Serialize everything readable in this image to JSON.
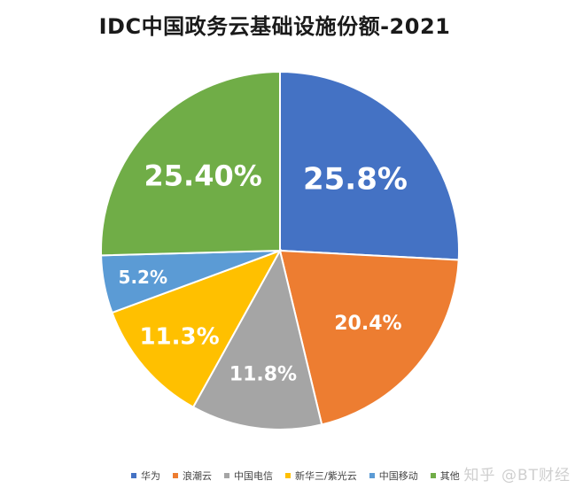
{
  "chart_data": {
    "type": "pie",
    "title": "IDC中国政务云基础设施份额-2021",
    "slices": [
      {
        "name": "华为",
        "value": 25.8,
        "label": "25.8%",
        "color": "#4472C4"
      },
      {
        "name": "浪潮云",
        "value": 20.4,
        "label": "20.4%",
        "color": "#ED7D31"
      },
      {
        "name": "中国电信",
        "value": 11.8,
        "label": "11.8%",
        "color": "#A5A5A5"
      },
      {
        "name": "新华三/紫光云",
        "value": 11.3,
        "label": "11.3%",
        "color": "#FFC000"
      },
      {
        "name": "中国移动",
        "value": 5.2,
        "label": "5.2%",
        "color": "#5B9BD5"
      },
      {
        "name": "其他",
        "value": 25.4,
        "label": "25.40%",
        "color": "#70AD47"
      }
    ],
    "legend_position": "bottom",
    "start_angle": "12 o'clock, clockwise"
  },
  "watermark": "知乎 @BT财经"
}
